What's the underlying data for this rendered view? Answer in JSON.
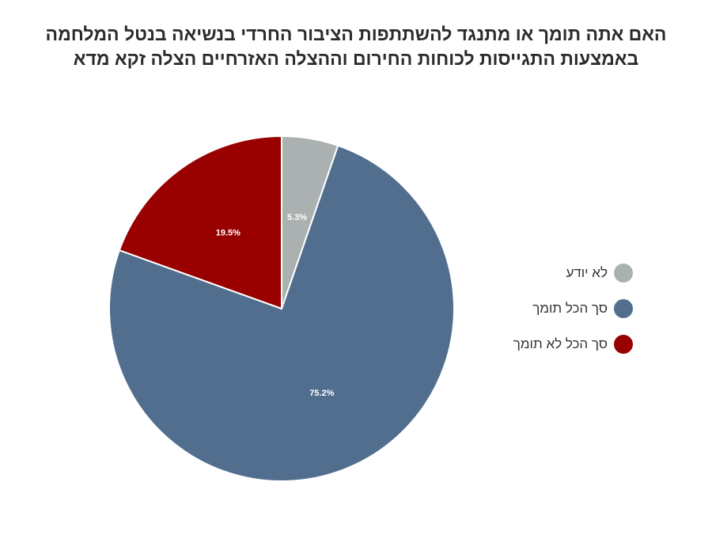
{
  "title_lines": [
    "האם אתה תומך או מתנגד להשתתפות הציבור החרדי בנשיאה בנטל המלחמה",
    "באמצעות התגייסות לכוחות החירום וההצלה האזרחיים הצלה זקא מדא"
  ],
  "chart_data": {
    "type": "pie",
    "title": "האם אתה תומך או מתנגד להשתתפות הציבור החרדי בנשיאה בנטל המלחמה באמצעות התגייסות לכוחות החירום וההצלה האזרחיים הצלה זקא מדא",
    "legend_position": "right",
    "slices": [
      {
        "label": "לא יודע",
        "value": 5.3,
        "display": "5.3%",
        "color": "#abb1b1"
      },
      {
        "label": "סך הכל תומך",
        "value": 75.2,
        "display": "75.2%",
        "color": "#516e8f"
      },
      {
        "label": "סך הכל לא תומך",
        "value": 19.5,
        "display": "19.5%",
        "color": "#990000"
      }
    ]
  }
}
